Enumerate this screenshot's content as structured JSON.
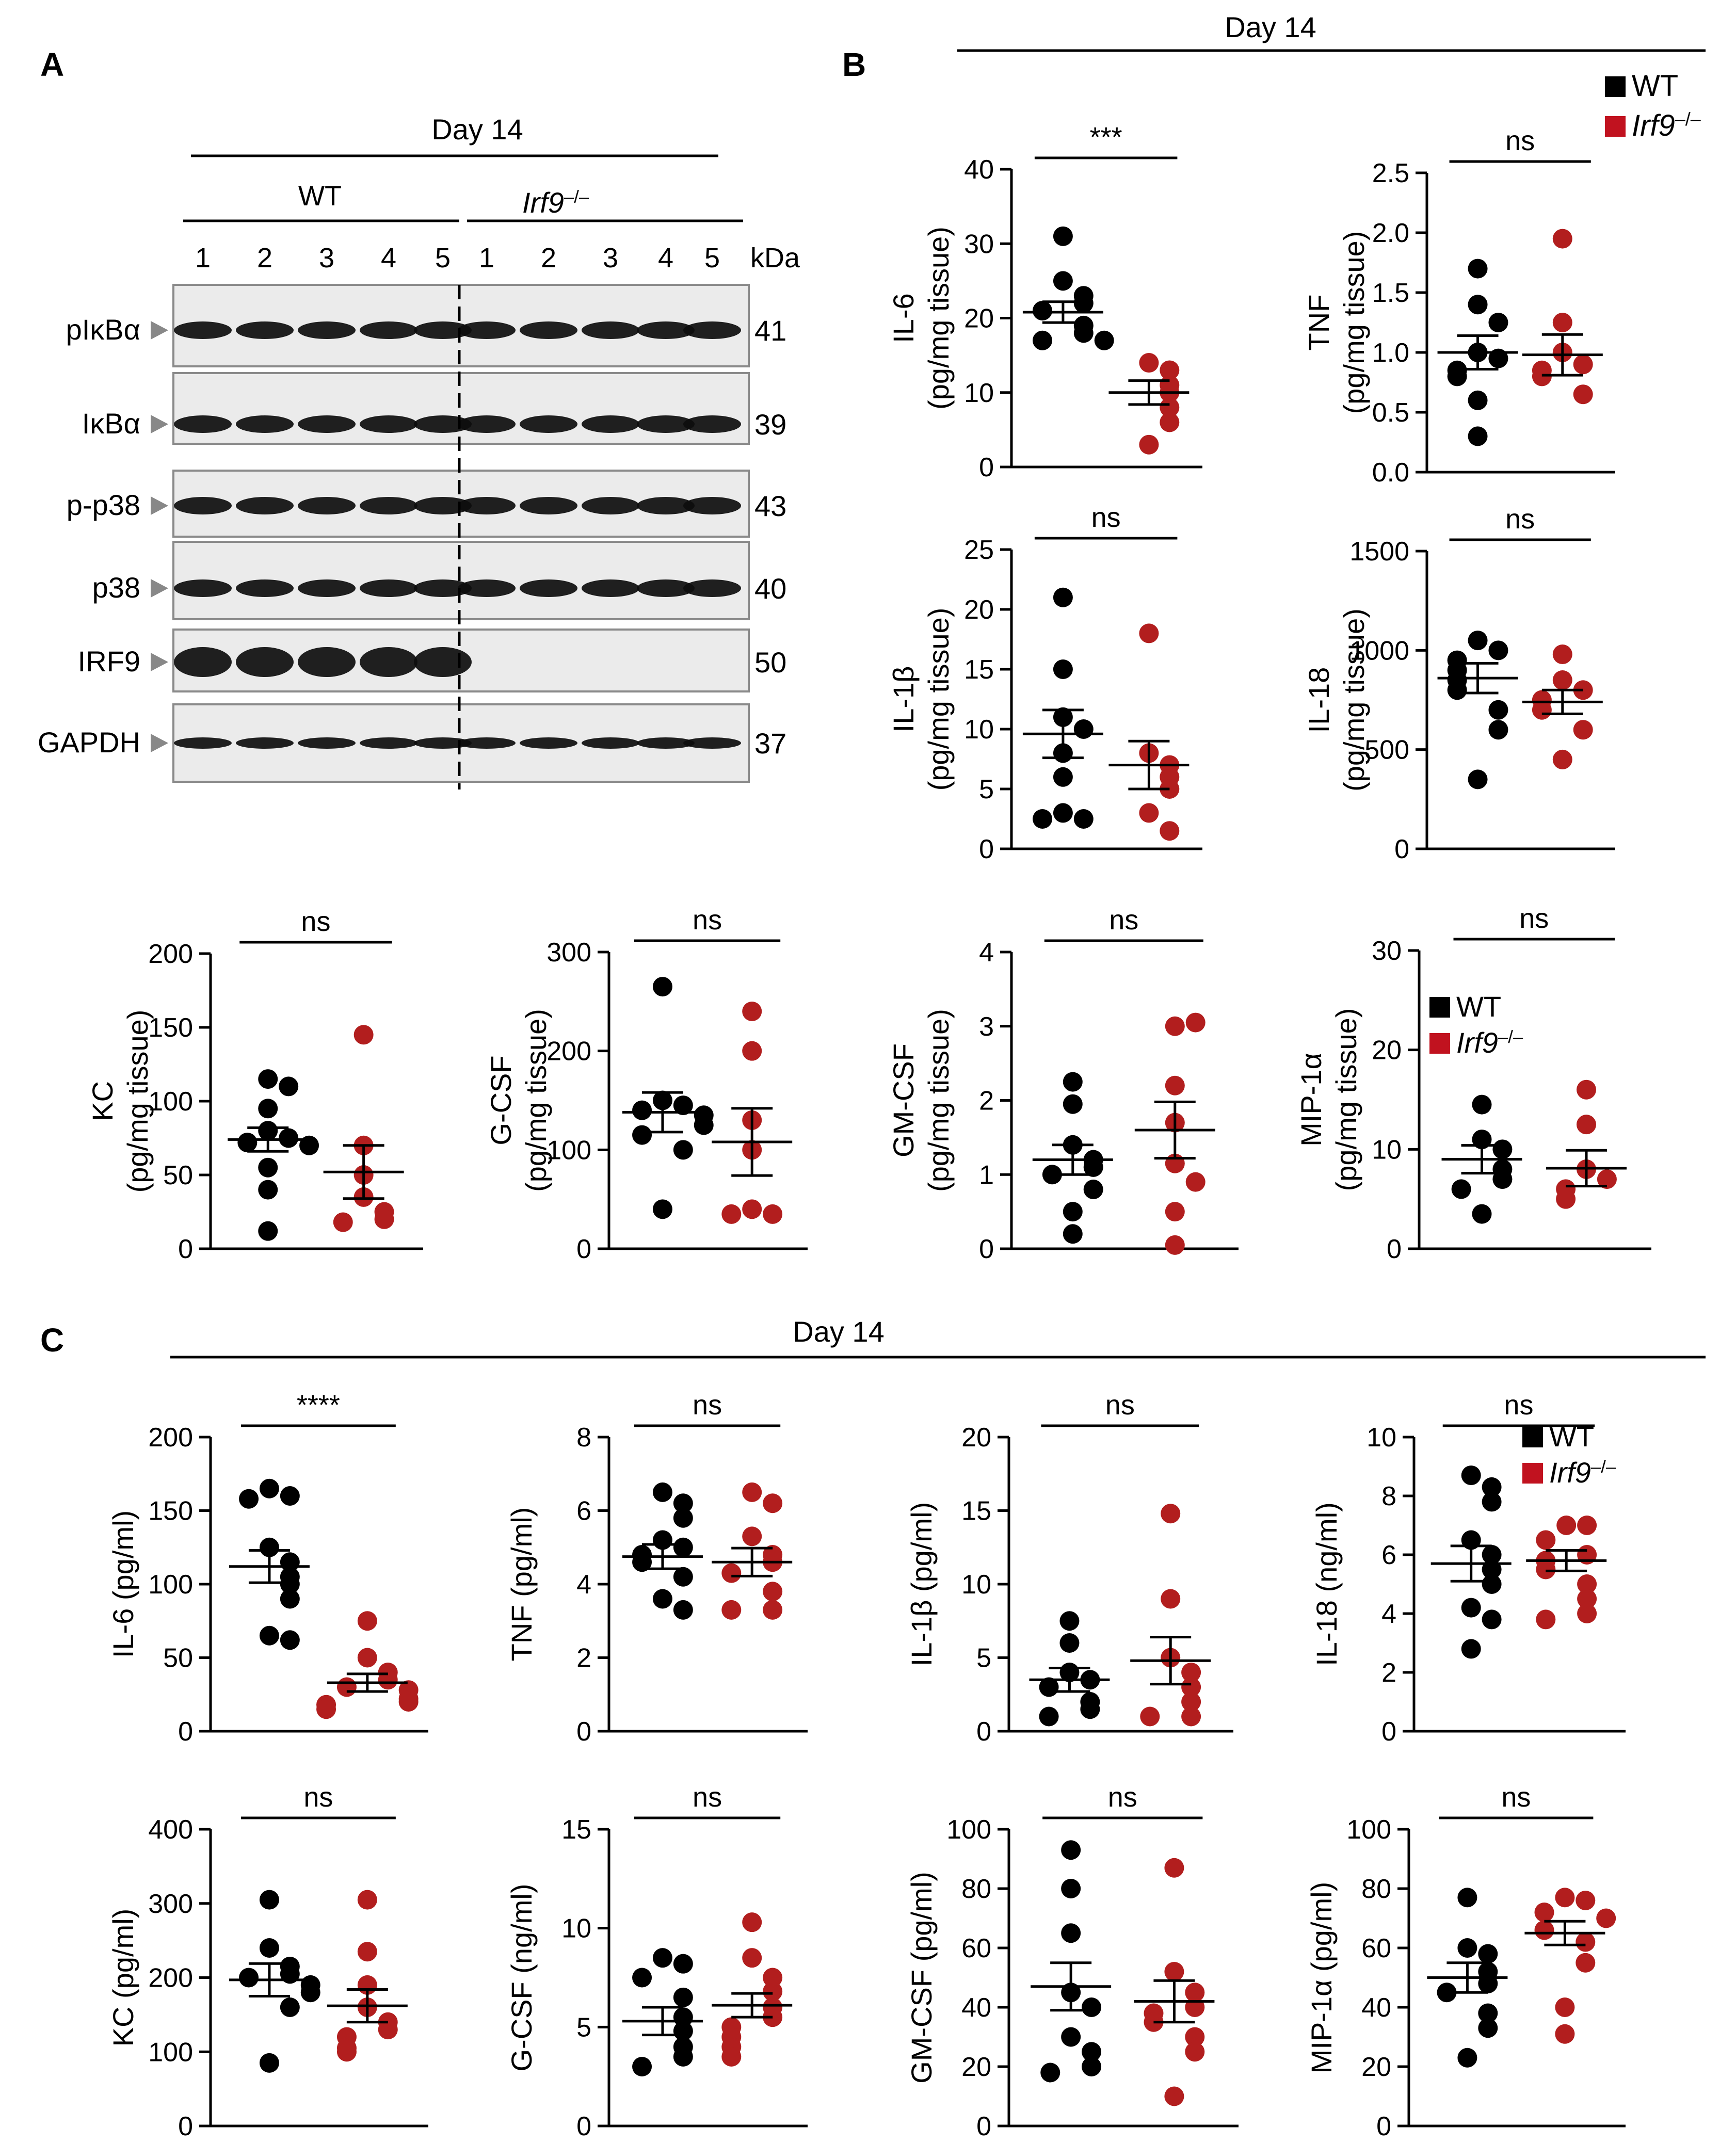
{
  "panels": {
    "a": "A",
    "b": "B",
    "c": "C"
  },
  "colors": {
    "wt": "#000000",
    "ko": "#b21e1e",
    "ko_legend": "#c1121f",
    "axis": "#000000",
    "blot_bg": "#ebebeb"
  },
  "legend": {
    "wt": "WT",
    "ko": "Irf9–/–"
  },
  "blot": {
    "day": "Day 14",
    "wt_group": "WT",
    "ko_group": "Irf9–/–",
    "lanes": [
      "1",
      "2",
      "3",
      "4",
      "5",
      "1",
      "2",
      "3",
      "4",
      "5"
    ],
    "kda_label": "kDa",
    "rows": [
      {
        "label": "pIκBα",
        "kda": "41"
      },
      {
        "label": "IκBα",
        "kda": "39"
      },
      {
        "label": "p-p38",
        "kda": "43"
      },
      {
        "label": "p38",
        "kda": "40"
      },
      {
        "label": "IRF9",
        "kda": "50"
      },
      {
        "label": "GAPDH",
        "kda": "37"
      }
    ]
  },
  "section_b": {
    "day": "Day 14"
  },
  "section_c": {
    "day": "Day 14"
  },
  "chart_data": [
    {
      "type": "scatter",
      "id": "b_il6",
      "ylabel": "IL-6\n(pg/mg tissue)",
      "ylim": [
        0,
        40
      ],
      "yticks": [
        "0",
        "10",
        "20",
        "30",
        "40"
      ],
      "sig": "***",
      "wt": [
        31,
        25,
        23,
        22,
        21,
        19,
        18,
        17,
        17
      ],
      "ko": [
        14,
        13,
        11,
        10,
        8,
        6,
        3
      ],
      "wt_mean": 20.8,
      "wt_sem": 1.4,
      "ko_mean": 10.0,
      "ko_sem": 1.6
    },
    {
      "type": "scatter",
      "id": "b_tnf",
      "ylabel": "TNF\n(pg/mg tissue)",
      "ylim": [
        0,
        2.5
      ],
      "yticks": [
        "0.0",
        "0.5",
        "1.0",
        "1.5",
        "2.0",
        "2.5"
      ],
      "sig": "ns",
      "wt": [
        1.7,
        1.4,
        1.25,
        1.0,
        0.95,
        0.85,
        0.8,
        0.6,
        0.3
      ],
      "ko": [
        1.95,
        1.25,
        1.0,
        0.9,
        0.85,
        0.8,
        0.65
      ],
      "wt_mean": 1.0,
      "wt_sem": 0.14,
      "ko_mean": 0.98,
      "ko_sem": 0.17
    },
    {
      "type": "scatter",
      "id": "b_il1b",
      "ylabel": "IL-1β\n(pg/mg tissue)",
      "ylim": [
        0,
        25
      ],
      "yticks": [
        "0",
        "5",
        "10",
        "15",
        "20",
        "25"
      ],
      "sig": "ns",
      "wt": [
        21,
        15,
        11,
        10,
        8,
        6,
        3,
        2.5,
        2.5
      ],
      "ko": [
        18,
        8,
        7,
        6,
        5,
        3,
        1.5
      ],
      "wt_mean": 9.6,
      "wt_sem": 2.0,
      "ko_mean": 7.0,
      "ko_sem": 2.0
    },
    {
      "type": "scatter",
      "id": "b_il18",
      "ylabel": "IL-18\n(pg/mg tissue)",
      "ylim": [
        0,
        1500
      ],
      "yticks": [
        "0",
        "500",
        "1000",
        "1500"
      ],
      "sig": "ns",
      "wt": [
        1050,
        1000,
        950,
        900,
        850,
        800,
        700,
        600,
        350
      ],
      "ko": [
        980,
        850,
        800,
        750,
        700,
        600,
        450
      ],
      "wt_mean": 860,
      "wt_sem": 75,
      "ko_mean": 740,
      "ko_sem": 60
    },
    {
      "type": "scatter",
      "id": "b_kc",
      "ylabel": "KC\n(pg/mg tissue)",
      "ylim": [
        0,
        200
      ],
      "yticks": [
        "0",
        "50",
        "100",
        "150",
        "200"
      ],
      "sig": "ns",
      "wt": [
        115,
        110,
        95,
        80,
        75,
        72,
        70,
        55,
        40,
        12
      ],
      "ko": [
        145,
        70,
        50,
        35,
        25,
        20,
        18
      ],
      "wt_mean": 74,
      "wt_sem": 8,
      "ko_mean": 52,
      "ko_sem": 18
    },
    {
      "type": "scatter",
      "id": "b_gcsf",
      "ylabel": "G-CSF\n(pg/mg tissue)",
      "ylim": [
        0,
        300
      ],
      "yticks": [
        "0",
        "100",
        "200",
        "300"
      ],
      "sig": "ns",
      "wt": [
        265,
        150,
        145,
        140,
        135,
        125,
        115,
        100,
        40
      ],
      "ko": [
        240,
        200,
        130,
        100,
        40,
        35,
        35
      ],
      "wt_mean": 138,
      "wt_sem": 20,
      "ko_mean": 108,
      "ko_sem": 34
    },
    {
      "type": "scatter",
      "id": "b_gmcsf",
      "ylabel": "GM-CSF\n(pg/mg tissue)",
      "ylim": [
        0,
        4
      ],
      "yticks": [
        "0",
        "1",
        "2",
        "3",
        "4"
      ],
      "sig": "ns",
      "wt": [
        2.25,
        1.95,
        1.4,
        1.2,
        1.1,
        1.0,
        0.8,
        0.5,
        0.2
      ],
      "ko": [
        3.0,
        3.05,
        2.2,
        1.7,
        1.15,
        0.9,
        0.5,
        0.05
      ],
      "wt_mean": 1.2,
      "wt_sem": 0.2,
      "ko_mean": 1.6,
      "ko_sem": 0.38
    },
    {
      "type": "scatter",
      "id": "b_mip",
      "ylabel": "MIP-1α\n(pg/mg tissue)",
      "ylim": [
        0,
        30
      ],
      "yticks": [
        "0",
        "10",
        "20",
        "30"
      ],
      "sig": "ns",
      "legend": true,
      "wt": [
        14.5,
        11,
        10,
        8,
        7,
        6,
        3.5
      ],
      "ko": [
        16,
        12.5,
        8,
        7,
        6,
        5
      ],
      "wt_mean": 9.0,
      "wt_sem": 1.4,
      "ko_mean": 8.1,
      "ko_sem": 1.8
    },
    {
      "type": "scatter",
      "id": "c_il6",
      "ylabel": "IL-6 (pg/ml)",
      "ylim": [
        0,
        200
      ],
      "yticks": [
        "0",
        "50",
        "100",
        "150",
        "200"
      ],
      "sig": "****",
      "wt": [
        165,
        160,
        158,
        125,
        115,
        105,
        100,
        90,
        65,
        62
      ],
      "ko": [
        75,
        50,
        40,
        35,
        30,
        28,
        22,
        20,
        18,
        15
      ],
      "wt_mean": 112,
      "wt_sem": 11,
      "ko_mean": 33,
      "ko_sem": 6
    },
    {
      "type": "scatter",
      "id": "c_tnf",
      "ylabel": "TNF (pg/ml)",
      "ylim": [
        0,
        8
      ],
      "yticks": [
        "0",
        "2",
        "4",
        "6",
        "8"
      ],
      "sig": "ns",
      "wt": [
        6.5,
        6.2,
        5.8,
        5.2,
        5.0,
        4.8,
        4.6,
        4.2,
        3.6,
        3.3
      ],
      "ko": [
        6.5,
        6.2,
        5.3,
        4.8,
        4.6,
        4.3,
        3.8,
        3.3,
        3.3
      ],
      "wt_mean": 4.75,
      "wt_sem": 0.33,
      "ko_mean": 4.6,
      "ko_sem": 0.38
    },
    {
      "type": "scatter",
      "id": "c_il1b",
      "ylabel": "IL-1β (pg/ml)",
      "ylim": [
        0,
        20
      ],
      "yticks": [
        "0",
        "5",
        "10",
        "15",
        "20"
      ],
      "sig": "ns",
      "wt": [
        7.5,
        6,
        4,
        3.5,
        3,
        2,
        1.5,
        1
      ],
      "ko": [
        14.8,
        9,
        5,
        4,
        3,
        2,
        1,
        1
      ],
      "wt_mean": 3.5,
      "wt_sem": 0.8,
      "ko_mean": 4.8,
      "ko_sem": 1.6
    },
    {
      "type": "scatter",
      "id": "c_il18",
      "ylabel": "IL-18 (ng/ml)",
      "ylim": [
        0,
        10
      ],
      "yticks": [
        "0",
        "2",
        "4",
        "6",
        "8",
        "10"
      ],
      "sig": "ns",
      "legend": true,
      "wt": [
        8.7,
        8.3,
        7.8,
        6.5,
        6.0,
        5.5,
        5.0,
        4.2,
        3.8,
        2.8
      ],
      "ko": [
        7.0,
        7.0,
        6.5,
        6.0,
        5.8,
        5.5,
        5.0,
        4.5,
        4.0,
        3.8
      ],
      "wt_mean": 5.7,
      "wt_sem": 0.6,
      "ko_mean": 5.8,
      "ko_sem": 0.35
    },
    {
      "type": "scatter",
      "id": "c_kc",
      "ylabel": "KC (pg/ml)",
      "ylim": [
        0,
        400
      ],
      "yticks": [
        "0",
        "100",
        "200",
        "300",
        "400"
      ],
      "sig": "ns",
      "wt": [
        305,
        240,
        215,
        205,
        200,
        190,
        180,
        160,
        85
      ],
      "ko": [
        305,
        235,
        190,
        160,
        140,
        130,
        120,
        105,
        100
      ],
      "wt_mean": 197,
      "wt_sem": 22,
      "ko_mean": 162,
      "ko_sem": 22
    },
    {
      "type": "scatter",
      "id": "c_gcsf",
      "ylabel": "G-CSF (ng/ml)",
      "ylim": [
        0,
        15
      ],
      "yticks": [
        "0",
        "5",
        "10",
        "15"
      ],
      "sig": "ns",
      "wt": [
        8.5,
        8.2,
        7.5,
        6.5,
        5.5,
        4.8,
        4.0,
        3.5,
        3.0
      ],
      "ko": [
        10.3,
        8.5,
        7.5,
        6.8,
        6.0,
        5.5,
        5.0,
        4.5,
        4.0,
        3.5
      ],
      "wt_mean": 5.3,
      "wt_sem": 0.7,
      "ko_mean": 6.1,
      "ko_sem": 0.6
    },
    {
      "type": "scatter",
      "id": "c_gmcsf",
      "ylabel": "GM-CSF (pg/ml)",
      "ylim": [
        0,
        100
      ],
      "yticks": [
        "0",
        "20",
        "40",
        "60",
        "80",
        "100"
      ],
      "sig": "ns",
      "wt": [
        93,
        80,
        65,
        45,
        40,
        30,
        25,
        20,
        18
      ],
      "ko": [
        87,
        52,
        45,
        40,
        38,
        35,
        30,
        25,
        10
      ],
      "wt_mean": 47,
      "wt_sem": 8,
      "ko_mean": 42,
      "ko_sem": 7
    },
    {
      "type": "scatter",
      "id": "c_mip",
      "ylabel": "MIP-1α (pg/ml)",
      "ylim": [
        0,
        100
      ],
      "yticks": [
        "0",
        "20",
        "40",
        "60",
        "80",
        "100"
      ],
      "sig": "ns",
      "wt": [
        77,
        60,
        58,
        52,
        48,
        45,
        38,
        33,
        23
      ],
      "ko": [
        77,
        76,
        72,
        70,
        66,
        62,
        55,
        40,
        31
      ],
      "wt_mean": 50,
      "wt_sem": 5,
      "ko_mean": 65,
      "ko_sem": 4
    }
  ]
}
